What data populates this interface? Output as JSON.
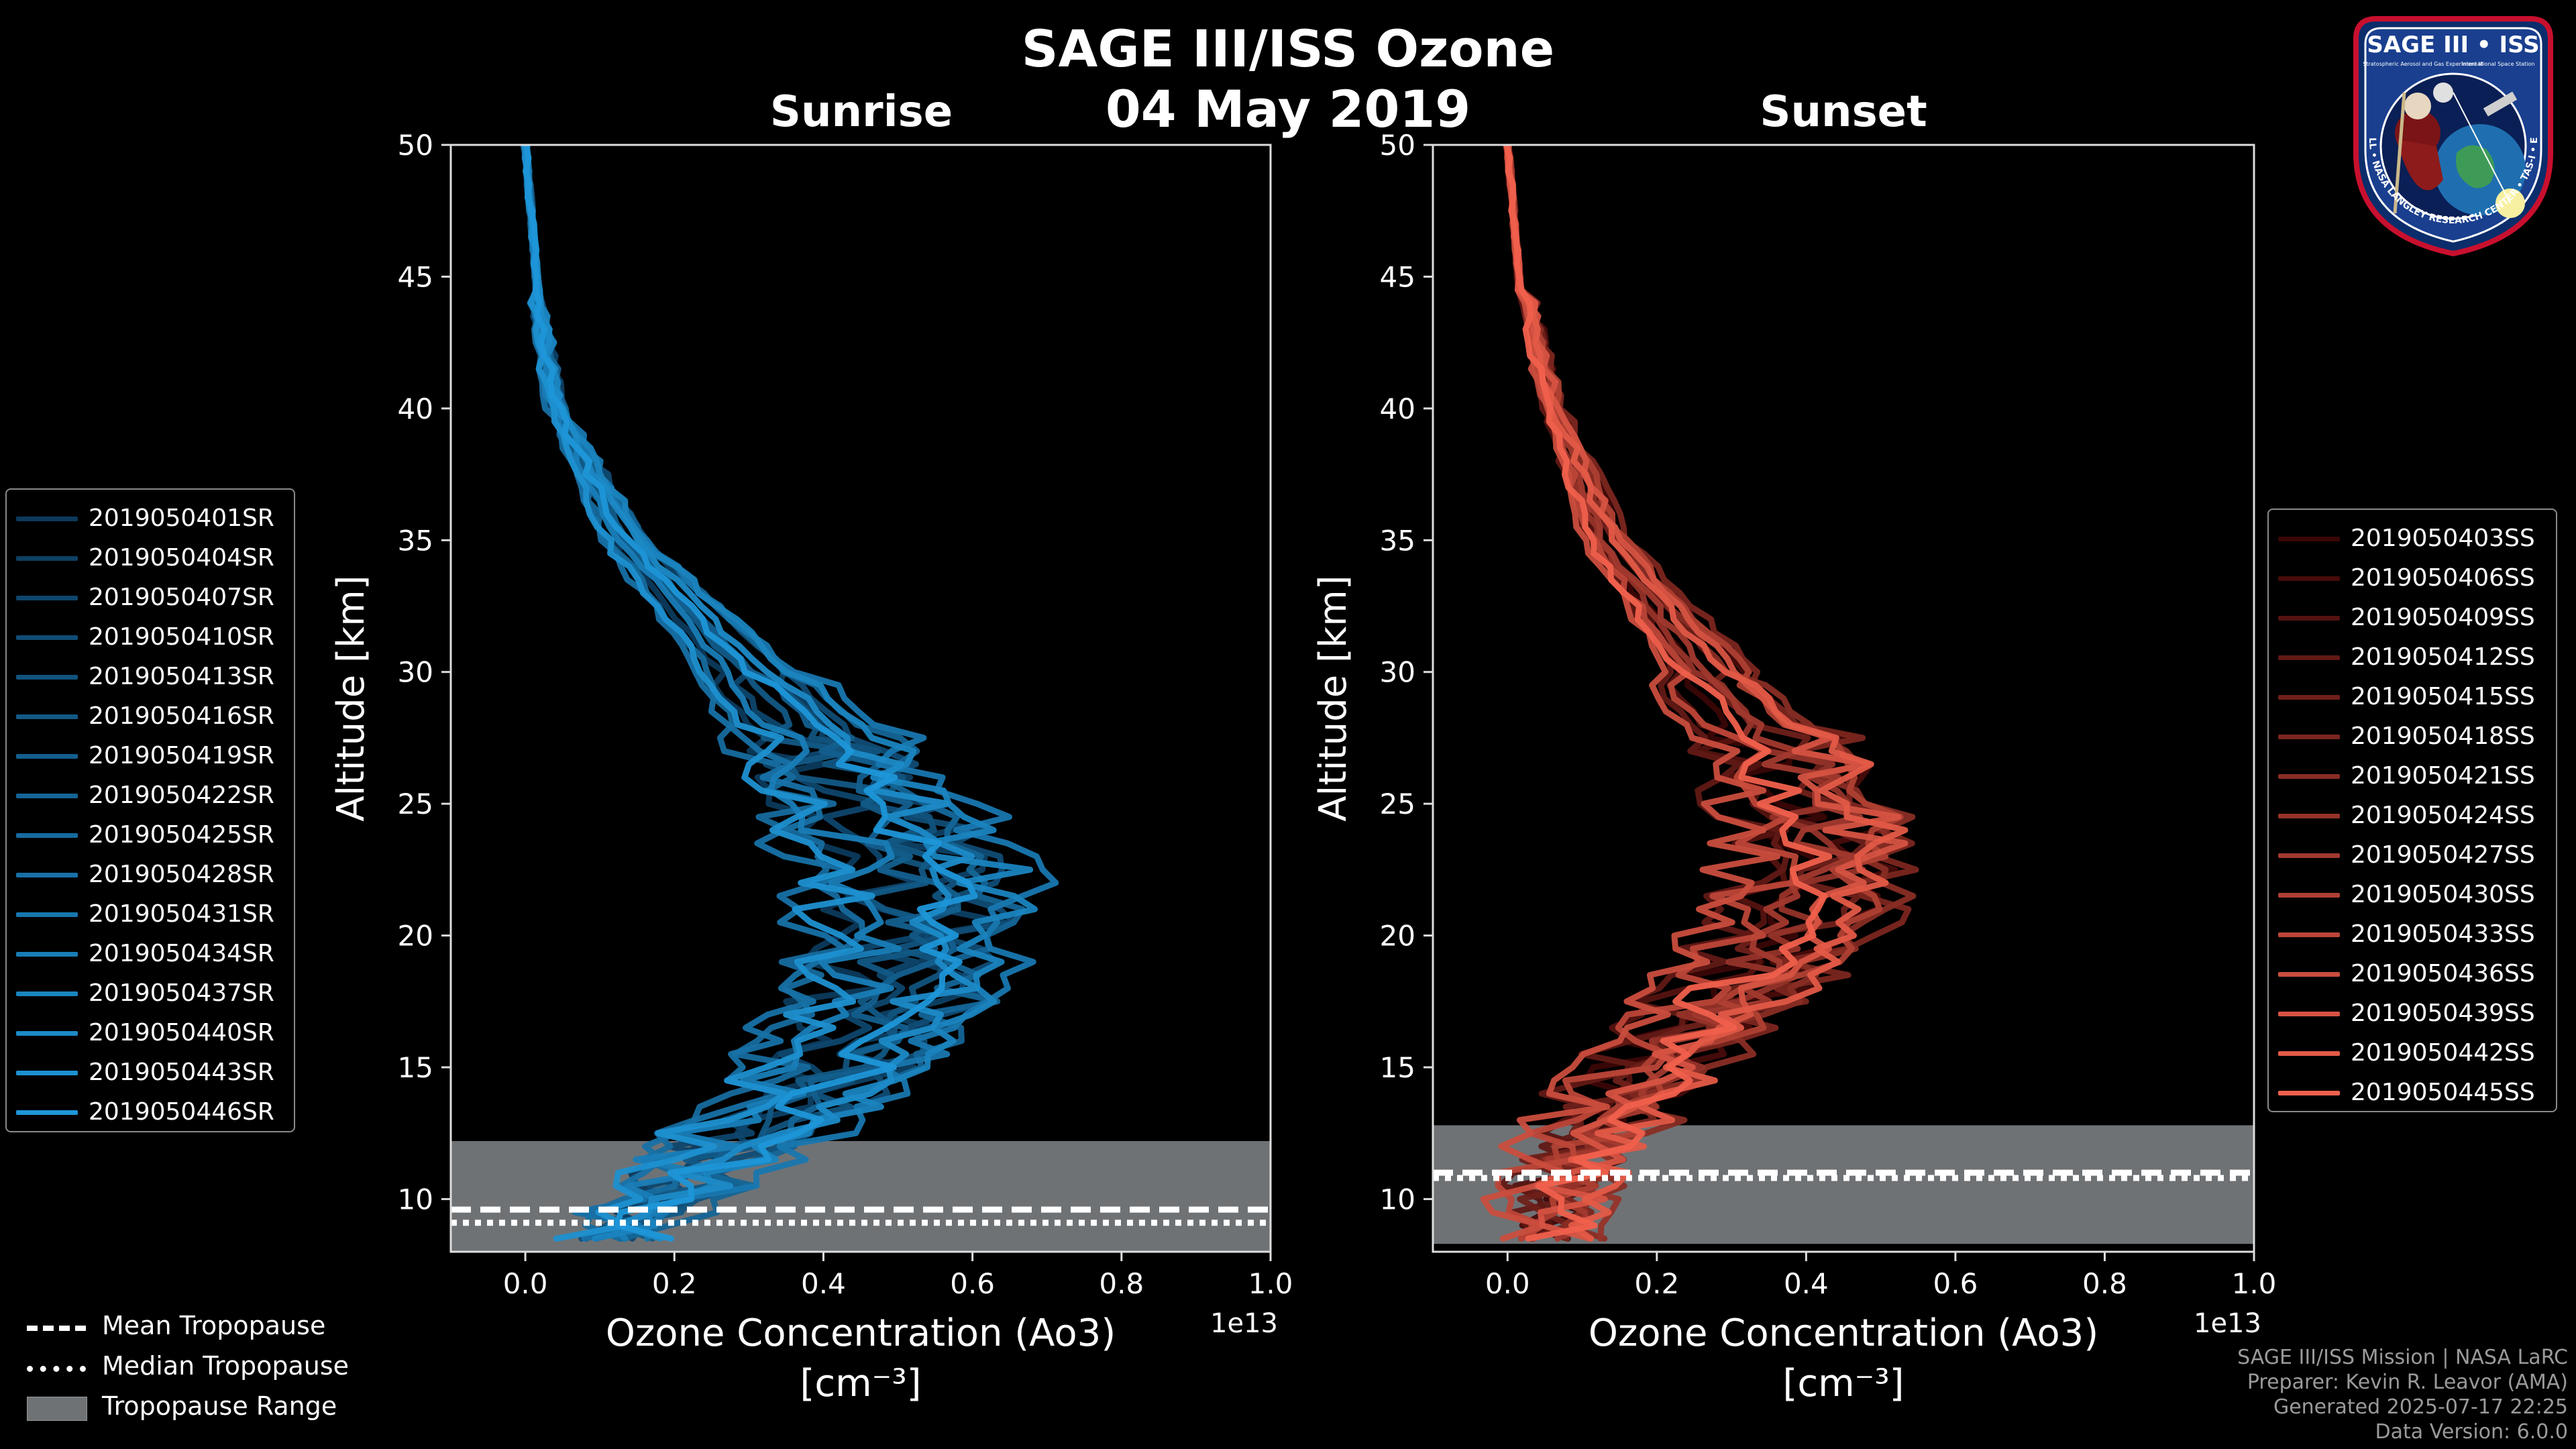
{
  "title_line1": "SAGE III/ISS Ozone",
  "title_line2": "04 May 2019",
  "badge": {
    "name": "SAGE III • ISS",
    "subtitle": "Stratospheric Aerosol and Gas Experiment III",
    "partner": "International Space Station",
    "ring_text": "BALL • NASA LANGLEY RESEARCH CENTER • TAS-I • ESA"
  },
  "colors": {
    "sunrise_dark": "#0c3a5c",
    "sunrise_light": "#1e96d8",
    "sunset_dark": "#3a0606",
    "sunset_light": "#f0604c",
    "tropopause_fill": "#6f7275"
  },
  "tropopause_legend": [
    {
      "label": "Mean Tropopause",
      "style": "dashed"
    },
    {
      "label": "Median Tropopause",
      "style": "dotted"
    },
    {
      "label": "Tropopause Range",
      "style": "patch"
    }
  ],
  "footer": [
    "SAGE III/ISS Mission | NASA LaRC",
    "Preparer: Kevin R. Leavor (AMA)",
    "Generated 2025-07-17 22:25",
    "Data Version: 6.0.0"
  ],
  "chart_data": [
    {
      "type": "line",
      "title": "Sunrise",
      "xlabel": "Ozone Concentration (Ao3)",
      "xunit": "[cm⁻³]",
      "ylabel": "Altitude [km]",
      "x_multiplier": "1e13",
      "xlim": [
        -0.1,
        1.0
      ],
      "ylim": [
        8,
        50
      ],
      "xticks": [
        "0.0",
        "0.2",
        "0.4",
        "0.6",
        "0.8",
        "1.0"
      ],
      "yticks": [
        "10",
        "15",
        "20",
        "25",
        "30",
        "35",
        "40",
        "45",
        "50"
      ],
      "tropopause": {
        "mean": 9.6,
        "median": 9.1,
        "range": [
          8,
          12.2
        ]
      },
      "series_names": [
        "2019050401SR",
        "2019050404SR",
        "2019050407SR",
        "2019050410SR",
        "2019050413SR",
        "2019050416SR",
        "2019050419SR",
        "2019050422SR",
        "2019050425SR",
        "2019050428SR",
        "2019050431SR",
        "2019050434SR",
        "2019050437SR",
        "2019050440SR",
        "2019050443SR",
        "2019050446SR"
      ],
      "profile_knots_km": [
        50,
        45,
        40,
        35,
        30,
        27,
        25,
        22,
        20,
        18,
        16,
        14,
        12,
        10,
        8.3
      ],
      "profile_mean": [
        0.0,
        0.01,
        0.04,
        0.13,
        0.29,
        0.38,
        0.44,
        0.5,
        0.5,
        0.48,
        0.43,
        0.37,
        0.26,
        0.18,
        0.1
      ]
    },
    {
      "type": "line",
      "title": "Sunset",
      "xlabel": "Ozone Concentration (Ao3)",
      "xunit": "[cm⁻³]",
      "ylabel": "Altitude [km]",
      "x_multiplier": "1e13",
      "xlim": [
        -0.1,
        1.0
      ],
      "ylim": [
        8,
        50
      ],
      "xticks": [
        "0.0",
        "0.2",
        "0.4",
        "0.6",
        "0.8",
        "1.0"
      ],
      "yticks": [
        "10",
        "15",
        "20",
        "25",
        "30",
        "35",
        "40",
        "45",
        "50"
      ],
      "tropopause": {
        "mean": 11.0,
        "median": 10.8,
        "range": [
          8.3,
          12.8
        ]
      },
      "series_names": [
        "2019050403SS",
        "2019050406SS",
        "2019050409SS",
        "2019050412SS",
        "2019050415SS",
        "2019050418SS",
        "2019050421SS",
        "2019050424SS",
        "2019050427SS",
        "2019050430SS",
        "2019050433SS",
        "2019050436SS",
        "2019050439SS",
        "2019050442SS",
        "2019050445SS"
      ],
      "profile_knots_km": [
        50,
        45,
        40,
        35,
        30,
        27,
        25,
        22,
        20,
        18,
        16,
        14,
        12,
        10,
        8.3
      ],
      "profile_mean": [
        0.0,
        0.02,
        0.06,
        0.13,
        0.27,
        0.37,
        0.42,
        0.43,
        0.39,
        0.32,
        0.24,
        0.17,
        0.11,
        0.08,
        0.06
      ]
    }
  ]
}
